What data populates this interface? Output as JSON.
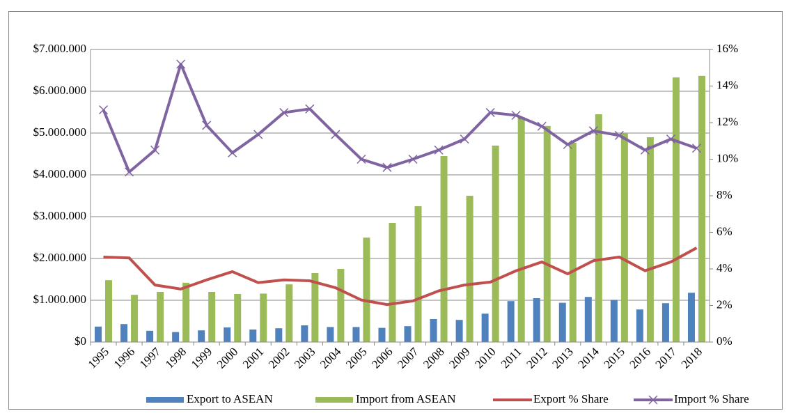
{
  "chart_data": {
    "type": "bar",
    "categories": [
      "1995",
      "1996",
      "1997",
      "1998",
      "1999",
      "2000",
      "2001",
      "2002",
      "2003",
      "2004",
      "2005",
      "2006",
      "2007",
      "2008",
      "2009",
      "2010",
      "2011",
      "2012",
      "2013",
      "2014",
      "2015",
      "2016",
      "2017",
      "2018"
    ],
    "series": [
      {
        "name": "Export to ASEAN",
        "type": "bar",
        "color": "#4f81bd",
        "values": [
          370000,
          430000,
          270000,
          240000,
          280000,
          350000,
          300000,
          330000,
          400000,
          360000,
          360000,
          340000,
          380000,
          550000,
          530000,
          680000,
          980000,
          1050000,
          940000,
          1080000,
          1010000,
          780000,
          930000,
          1180000
        ]
      },
      {
        "name": "Import from ASEAN",
        "type": "bar",
        "color": "#9bbb59",
        "values": [
          1480000,
          1130000,
          1200000,
          1420000,
          1200000,
          1150000,
          1160000,
          1380000,
          1650000,
          1750000,
          2500000,
          2850000,
          3250000,
          4450000,
          3500000,
          4700000,
          5380000,
          5170000,
          4770000,
          5450000,
          5000000,
          4900000,
          6330000,
          6370000
        ]
      },
      {
        "name": "Export % Share",
        "type": "line",
        "axis": "y2",
        "color": "#c0504d",
        "values": [
          4.65,
          4.6,
          3.12,
          2.9,
          3.4,
          3.85,
          3.25,
          3.4,
          3.35,
          2.97,
          2.3,
          2.05,
          2.25,
          2.8,
          3.12,
          3.28,
          3.9,
          4.38,
          3.73,
          4.45,
          4.65,
          3.9,
          4.38,
          5.15
        ]
      },
      {
        "name": "Import % Share",
        "type": "line",
        "axis": "y2",
        "color": "#8064a2",
        "marker": "x",
        "values": [
          12.7,
          9.3,
          10.5,
          15.2,
          11.85,
          10.35,
          11.35,
          12.55,
          12.75,
          11.35,
          10.0,
          9.55,
          10.0,
          10.5,
          11.1,
          12.55,
          12.4,
          11.8,
          10.8,
          11.55,
          11.3,
          10.5,
          11.1,
          10.6
        ]
      }
    ],
    "ylim": [
      0,
      7000000
    ],
    "yticks": [
      {
        "value": 0,
        "label": "$0"
      },
      {
        "value": 1000000,
        "label": "$1.000.000"
      },
      {
        "value": 2000000,
        "label": "$2.000.000"
      },
      {
        "value": 3000000,
        "label": "$3.000.000"
      },
      {
        "value": 4000000,
        "label": "$4.000.000"
      },
      {
        "value": 5000000,
        "label": "$5.000.000"
      },
      {
        "value": 6000000,
        "label": "$6.000.000"
      },
      {
        "value": 7000000,
        "label": "$7.000.000"
      }
    ],
    "y2lim": [
      0,
      16
    ],
    "y2ticks": [
      {
        "value": 0,
        "label": "0%"
      },
      {
        "value": 2,
        "label": "2%"
      },
      {
        "value": 4,
        "label": "4%"
      },
      {
        "value": 6,
        "label": "6%"
      },
      {
        "value": 8,
        "label": "8%"
      },
      {
        "value": 10,
        "label": "10%"
      },
      {
        "value": 12,
        "label": "12%"
      },
      {
        "value": 14,
        "label": "14%"
      },
      {
        "value": 16,
        "label": "16%"
      }
    ],
    "grid": true,
    "legend": "bottom"
  }
}
